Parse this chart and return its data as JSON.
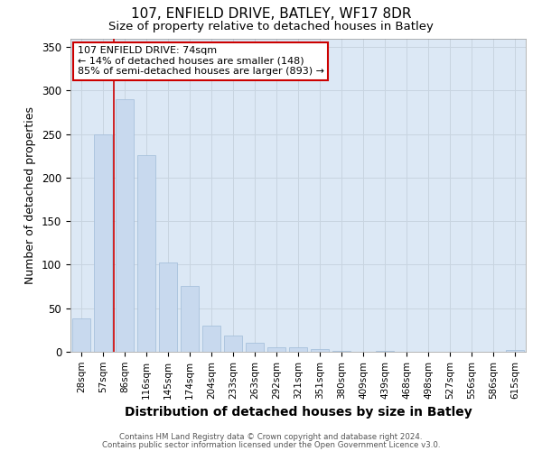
{
  "title": "107, ENFIELD DRIVE, BATLEY, WF17 8DR",
  "subtitle": "Size of property relative to detached houses in Batley",
  "xlabel": "Distribution of detached houses by size in Batley",
  "ylabel": "Number of detached properties",
  "categories": [
    "28sqm",
    "57sqm",
    "86sqm",
    "116sqm",
    "145sqm",
    "174sqm",
    "204sqm",
    "233sqm",
    "263sqm",
    "292sqm",
    "321sqm",
    "351sqm",
    "380sqm",
    "409sqm",
    "439sqm",
    "468sqm",
    "498sqm",
    "527sqm",
    "556sqm",
    "586sqm",
    "615sqm"
  ],
  "values": [
    38,
    250,
    290,
    226,
    103,
    76,
    30,
    19,
    10,
    5,
    5,
    3,
    1,
    0,
    1,
    0,
    0,
    0,
    0,
    0,
    2
  ],
  "bar_color": "#c8d9ee",
  "bar_edge_color": "#a0bcd8",
  "annotation_text_line1": "107 ENFIELD DRIVE: 74sqm",
  "annotation_text_line2": "← 14% of detached houses are smaller (148)",
  "annotation_text_line3": "85% of semi-detached houses are larger (893) →",
  "annotation_box_color": "#ffffff",
  "annotation_box_edge": "#cc0000",
  "vline_color": "#cc0000",
  "vline_x_index": 1.5,
  "ylim": [
    0,
    360
  ],
  "yticks": [
    0,
    50,
    100,
    150,
    200,
    250,
    300,
    350
  ],
  "grid_color": "#c8d4e0",
  "bg_color": "#dce8f5",
  "fig_bg_color": "#ffffff",
  "footer_line1": "Contains HM Land Registry data © Crown copyright and database right 2024.",
  "footer_line2": "Contains public sector information licensed under the Open Government Licence v3.0."
}
